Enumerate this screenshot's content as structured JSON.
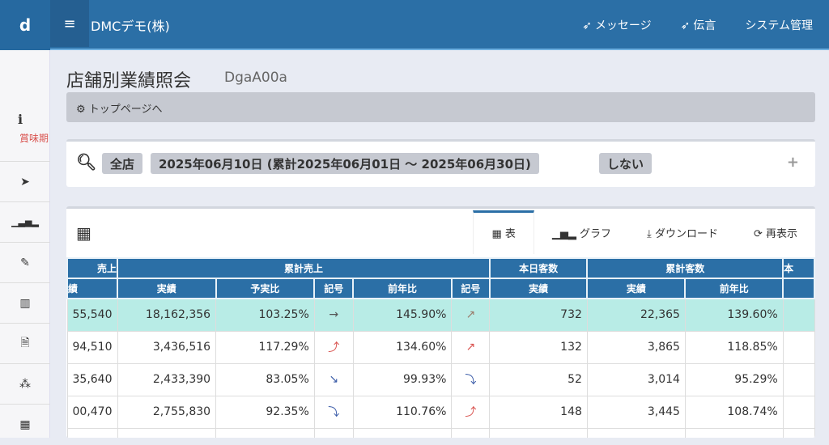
{
  "topbar": {
    "logo": "d",
    "menu_icon": "≡",
    "company": "DMCデモ(株)",
    "nav": [
      {
        "icon": "send-icon",
        "label": "メッセージ"
      },
      {
        "icon": "send-icon",
        "label": "伝言"
      },
      {
        "label": "システム管理"
      }
    ]
  },
  "sidebar": {
    "info_label": "賞味期",
    "items": [
      "send-icon",
      "bar-chart-icon",
      "edit-icon",
      "fax-icon",
      "file-icon",
      "cubes-icon",
      "calendar-icon"
    ]
  },
  "page": {
    "title": "店舗別業績照会",
    "code": "DgaA00a",
    "breadcrumb": "トップページへ"
  },
  "search": {
    "store": "全店",
    "period": "2025年06月10日 (累計2025年06月01日 〜 2025年06月30日)",
    "option": "しない",
    "expand": "+"
  },
  "tabs": [
    {
      "label": "表",
      "icon": "table-icon",
      "active": true
    },
    {
      "label": "グラフ",
      "icon": "bar-chart-icon"
    },
    {
      "label": "ダウンロード",
      "icon": "download-icon"
    },
    {
      "label": "再表示",
      "icon": "refresh-icon"
    }
  ],
  "table": {
    "groups": [
      {
        "label": "売上",
        "span": 1
      },
      {
        "label": "累計売上",
        "span": 5
      },
      {
        "label": "本日客数",
        "span": 1
      },
      {
        "label": "累計客数",
        "span": 2
      },
      {
        "label": "本",
        "span": 1
      }
    ],
    "columns": [
      "績",
      "実績",
      "予実比",
      "記号",
      "前年比",
      "記号",
      "実績",
      "実績",
      "前年比",
      ""
    ],
    "rows": [
      {
        "highlight": true,
        "cells": [
          "55,540",
          "18,162,356",
          "103.25%",
          "→",
          "145.90%",
          "↗",
          "732",
          "22,365",
          "139.60%",
          ""
        ]
      },
      {
        "cells": [
          "94,510",
          "3,436,516",
          "117.29%",
          "⤴",
          "134.60%",
          "↗",
          "132",
          "3,865",
          "118.85%",
          ""
        ]
      },
      {
        "cells": [
          "35,640",
          "2,433,390",
          "83.05%",
          "↘",
          "99.93%",
          "⤵",
          "52",
          "3,014",
          "95.29%",
          ""
        ]
      },
      {
        "cells": [
          "00,470",
          "2,755,830",
          "92.35%",
          "⤵",
          "110.76%",
          "⤴",
          "148",
          "3,445",
          "108.74%",
          ""
        ]
      },
      {
        "cells": [
          "",
          "",
          "",
          "",
          "",
          "",
          "",
          "",
          "",
          ""
        ]
      }
    ]
  },
  "colors": {
    "primary": "#2b6fa6",
    "highlight_row": "#b8ece6",
    "up": "#d9534f",
    "down": "#3b5ca8"
  }
}
